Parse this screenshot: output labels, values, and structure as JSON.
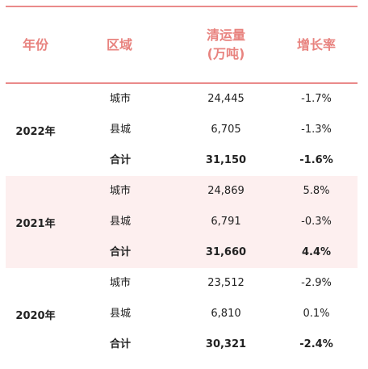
{
  "header": {
    "year": "年份",
    "area": "区域",
    "volume_line1": "清运量",
    "volume_line2": "(万吨)",
    "rate": "增长率"
  },
  "rows": [
    {
      "year": "2022年",
      "items": [
        {
          "area": "城市",
          "volume": "24,445",
          "rate": "-1.7%"
        },
        {
          "area": "县城",
          "volume": "6,705",
          "rate": "-1.3%"
        },
        {
          "area": "合计",
          "volume": "31,150",
          "rate": "-1.6%"
        }
      ]
    },
    {
      "year": "2021年",
      "items": [
        {
          "area": "城市",
          "volume": "24,869",
          "rate": "5.8%"
        },
        {
          "area": "县城",
          "volume": "6,791",
          "rate": "-0.3%"
        },
        {
          "area": "合计",
          "volume": "31,660",
          "rate": "4.4%"
        }
      ]
    },
    {
      "year": "2020年",
      "items": [
        {
          "area": "城市",
          "volume": "23,512",
          "rate": "-2.9%"
        },
        {
          "area": "县城",
          "volume": "6,810",
          "rate": "0.1%"
        },
        {
          "area": "合计",
          "volume": "30,321",
          "rate": "-2.4%"
        }
      ]
    }
  ],
  "colors": {
    "header_text": "#e8837f",
    "rule": "#ea8a8a",
    "band": "#fdefef"
  }
}
